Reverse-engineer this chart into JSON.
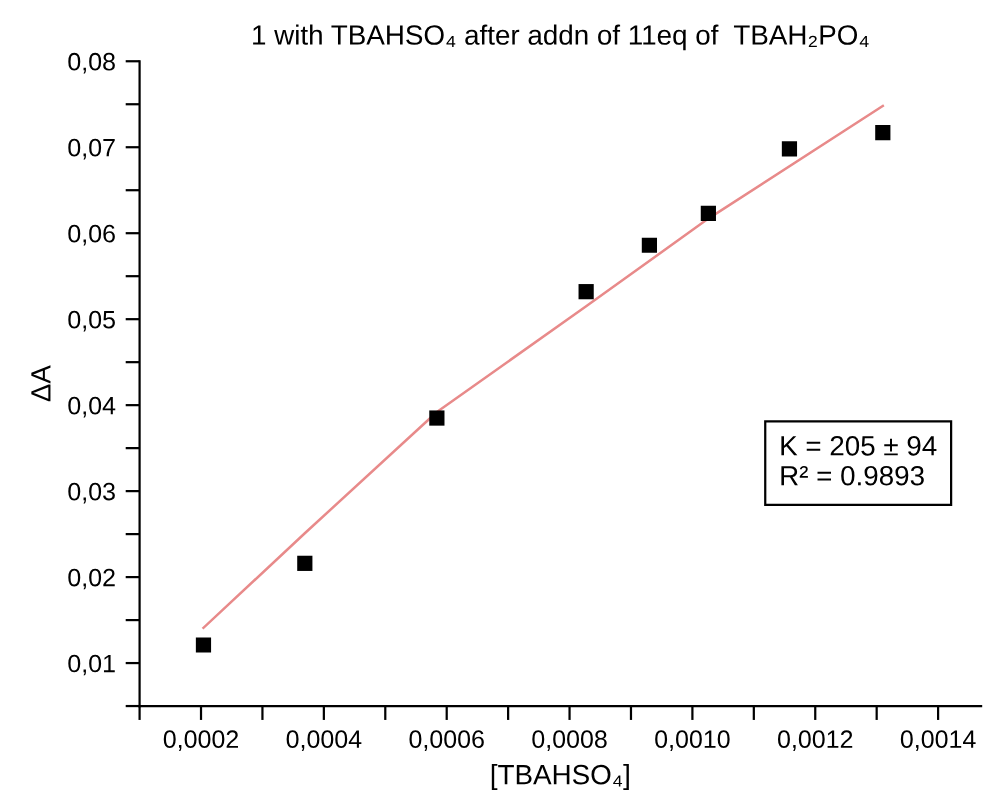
{
  "chart_data": {
    "type": "scatter",
    "title": "1 with TBAHSO₄ after addn of 11eq of  TBAH₂PO₄",
    "xlabel": "[TBAHSO₄]",
    "ylabel": "ΔA",
    "series": [
      {
        "color": "#000000",
        "marker": "square",
        "x": [
          0.000204,
          0.000369,
          0.000584,
          0.000827,
          0.00093,
          0.001026,
          0.001158,
          0.00131
        ],
        "values": [
          0.0121,
          0.0216,
          0.0385,
          0.0532,
          0.0586,
          0.0623,
          0.0698,
          0.0717
        ]
      },
      {
        "type": "line",
        "color": "#e88a8a",
        "line_style": "solid",
        "x": [
          0.000204,
          0.000369,
          0.000584,
          0.000827,
          0.001026,
          0.00131
        ],
        "values": [
          0.0141,
          0.0251,
          0.0392,
          0.0515,
          0.0617,
          0.0748
        ]
      }
    ],
    "annotations": [
      "K = 205 ± 94\nR² = 0.9893"
    ],
    "xlim": [
      0.0001,
      0.00147
    ],
    "ylim": [
      0.005,
      0.08
    ],
    "xticks": [
      {
        "value": 0.0001,
        "label": null
      },
      {
        "value": 0.0002,
        "label": "0,0002"
      },
      {
        "value": 0.0003,
        "label": null
      },
      {
        "value": 0.0004,
        "label": "0,0004"
      },
      {
        "value": 0.0005,
        "label": null
      },
      {
        "value": 0.0006,
        "label": "0,0006"
      },
      {
        "value": 0.0007,
        "label": null
      },
      {
        "value": 0.0008,
        "label": "0,0008"
      },
      {
        "value": 0.0009,
        "label": null
      },
      {
        "value": 0.001,
        "label": "0,0010"
      },
      {
        "value": 0.0011,
        "label": null
      },
      {
        "value": 0.0012,
        "label": "0,0012"
      },
      {
        "value": 0.0013,
        "label": null
      },
      {
        "value": 0.0014,
        "label": "0,0014"
      }
    ],
    "yticks": [
      {
        "value": 0.005,
        "label": null
      },
      {
        "value": 0.01,
        "label": "0,01"
      },
      {
        "value": 0.015,
        "label": null
      },
      {
        "value": 0.02,
        "label": "0,02"
      },
      {
        "value": 0.025,
        "label": null
      },
      {
        "value": 0.03,
        "label": "0,03"
      },
      {
        "value": 0.035,
        "label": null
      },
      {
        "value": 0.04,
        "label": "0,04"
      },
      {
        "value": 0.045,
        "label": null
      },
      {
        "value": 0.05,
        "label": "0,05"
      },
      {
        "value": 0.055,
        "label": null
      },
      {
        "value": 0.06,
        "label": "0,06"
      },
      {
        "value": 0.065,
        "label": null
      },
      {
        "value": 0.07,
        "label": "0,07"
      },
      {
        "value": 0.075,
        "label": null
      },
      {
        "value": 0.08,
        "label": "0,08"
      }
    ],
    "grid": false,
    "legend": false
  }
}
